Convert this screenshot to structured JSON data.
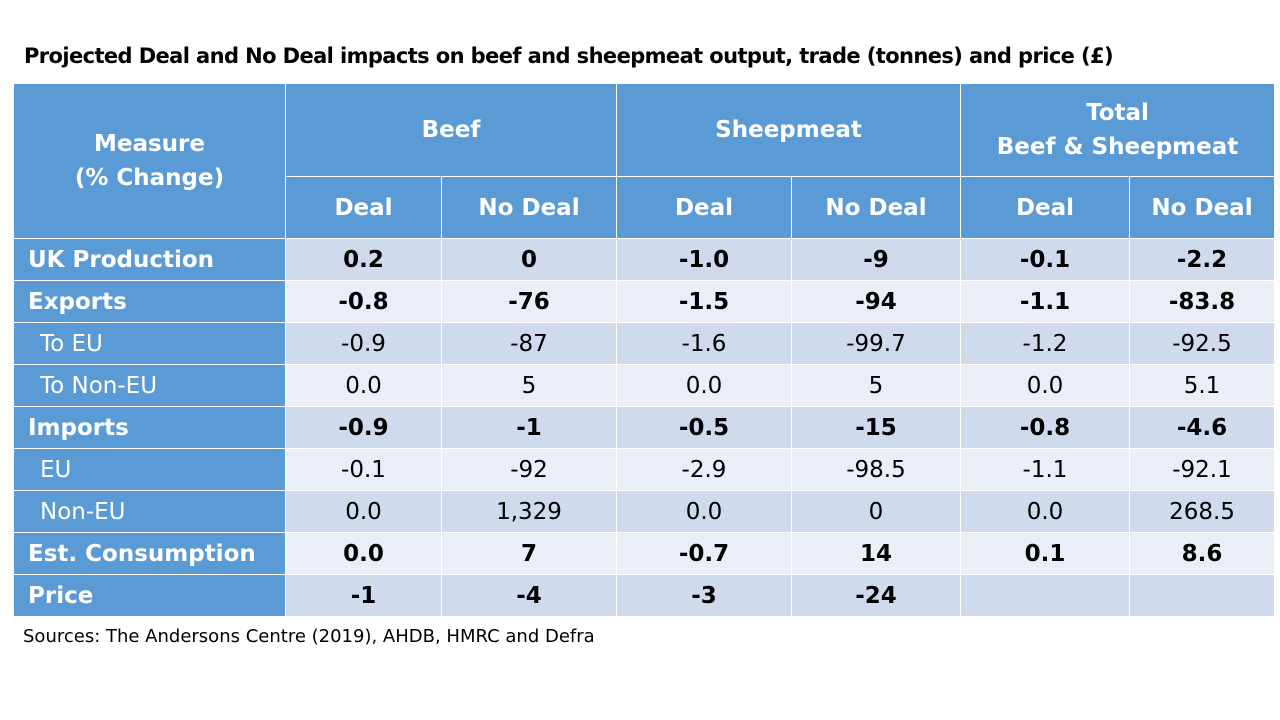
{
  "title": "Projected Deal and No Deal impacts on beef and sheepmeat output, trade (tonnes) and price (£)",
  "source": "Sources: The Andersons  Centre (2019), AHDB, HMRC and Defra",
  "colors": {
    "header": "#5b9bd5",
    "row_dark": "#cfdaec",
    "row_light": "#e9eef7"
  },
  "chart_data": {
    "type": "table",
    "title": "Projected Deal and No Deal impacts on beef and sheepmeat output, trade (tonnes) and price (£)",
    "measure_header": [
      "Measure",
      "(% Change)"
    ],
    "groups": [
      {
        "name": "Beef",
        "lines": [
          "Beef"
        ]
      },
      {
        "name": "Sheepmeat",
        "lines": [
          "Sheepmeat"
        ]
      },
      {
        "name": "Total Beef & Sheepmeat",
        "lines": [
          "Total",
          "Beef & Sheepmeat"
        ]
      }
    ],
    "sub_columns": [
      "Deal",
      "No Deal",
      "Deal",
      "No Deal",
      "Deal",
      "No Deal"
    ],
    "rows": [
      {
        "label": "UK Production",
        "bold": true,
        "indent": false,
        "values": [
          "0.2",
          "0",
          "-1.0",
          "-9",
          "-0.1",
          "-2.2"
        ]
      },
      {
        "label": "Exports",
        "bold": true,
        "indent": false,
        "values": [
          "-0.8",
          "-76",
          "-1.5",
          "-94",
          "-1.1",
          "-83.8"
        ]
      },
      {
        "label": "To EU",
        "bold": false,
        "indent": true,
        "values": [
          "-0.9",
          "-87",
          "-1.6",
          "-99.7",
          "-1.2",
          "-92.5"
        ]
      },
      {
        "label": "To Non-EU",
        "bold": false,
        "indent": true,
        "values": [
          "0.0",
          "5",
          "0.0",
          "5",
          "0.0",
          "5.1"
        ]
      },
      {
        "label": "Imports",
        "bold": true,
        "indent": false,
        "values": [
          "-0.9",
          "-1",
          "-0.5",
          "-15",
          "-0.8",
          "-4.6"
        ]
      },
      {
        "label": "EU",
        "bold": false,
        "indent": true,
        "values": [
          "-0.1",
          "-92",
          "-2.9",
          "-98.5",
          "-1.1",
          "-92.1"
        ]
      },
      {
        "label": "Non-EU",
        "bold": false,
        "indent": true,
        "values": [
          "0.0",
          "1,329",
          "0.0",
          "0",
          "0.0",
          "268.5"
        ]
      },
      {
        "label": "Est. Consumption",
        "bold": true,
        "indent": false,
        "values": [
          "0.0",
          "7",
          "-0.7",
          "14",
          "0.1",
          "8.6"
        ]
      },
      {
        "label": "Price",
        "bold": true,
        "indent": false,
        "values": [
          "-1",
          "-4",
          "-3",
          "-24",
          "",
          ""
        ]
      }
    ]
  }
}
